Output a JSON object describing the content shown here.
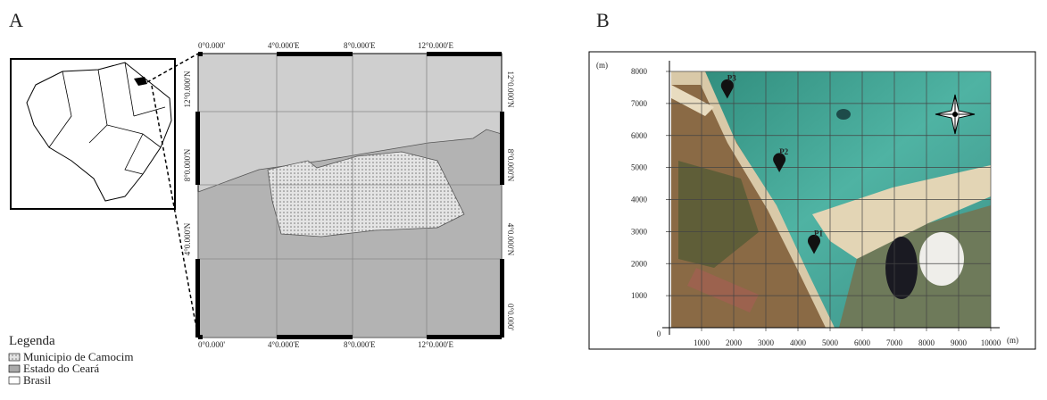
{
  "panel_a": {
    "label": "A",
    "top_labels": [
      "0°0.000'",
      "4°0.000'E",
      "8°0.000'E",
      "12°0.000'E"
    ],
    "bottom_labels": [
      "0°0.000'",
      "4°0.000'E",
      "8°0.000'E",
      "12°0.000'E"
    ],
    "left_labels": [
      "12°0.000'N",
      "8°0.000'N",
      "4°0.000'N"
    ],
    "right_labels": [
      "12°0.000'N",
      "8°0.000'N",
      "4°0.000'N",
      "0°0.000'"
    ],
    "legend": {
      "title": "Legenda",
      "items": [
        "Municipio de Camocim",
        "Estado do Ceará",
        "Brasil"
      ]
    }
  },
  "panel_b": {
    "label": "B",
    "x_unit": "(m)",
    "y_unit": "(m)",
    "origin": 0,
    "xlim": [
      0,
      10000
    ],
    "ylim": [
      0,
      8000
    ],
    "xticks": [
      1000,
      2000,
      3000,
      4000,
      5000,
      6000,
      7000,
      8000,
      9000,
      10000
    ],
    "yticks": [
      1000,
      2000,
      3000,
      4000,
      5000,
      6000,
      7000,
      8000
    ],
    "points": [
      {
        "name": "P3",
        "x": 1800,
        "y": 7150
      },
      {
        "name": "P2",
        "x": 3420,
        "y": 4850
      },
      {
        "name": "P1",
        "x": 4500,
        "y": 2300
      }
    ]
  }
}
